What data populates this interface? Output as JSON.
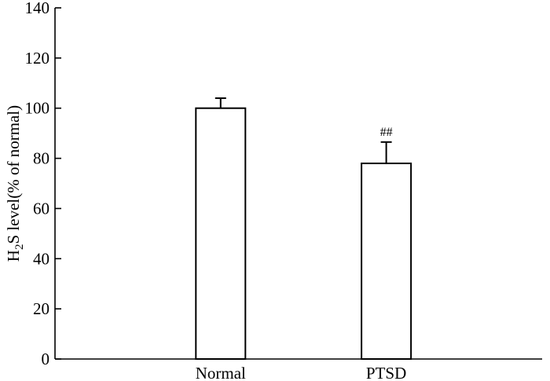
{
  "chart_data": {
    "type": "bar",
    "categories": [
      "Normal",
      "PTSD"
    ],
    "values": [
      100,
      78
    ],
    "errors": [
      4,
      8.5
    ],
    "annotations": [
      "",
      "##"
    ],
    "ylabel_main": "H",
    "ylabel_sub": "2",
    "ylabel_rest": "S level(% of normal)",
    "ylim": [
      0,
      140
    ],
    "yticks": [
      0,
      20,
      40,
      60,
      80,
      100,
      120,
      140
    ],
    "grid": false,
    "legend": "none"
  }
}
